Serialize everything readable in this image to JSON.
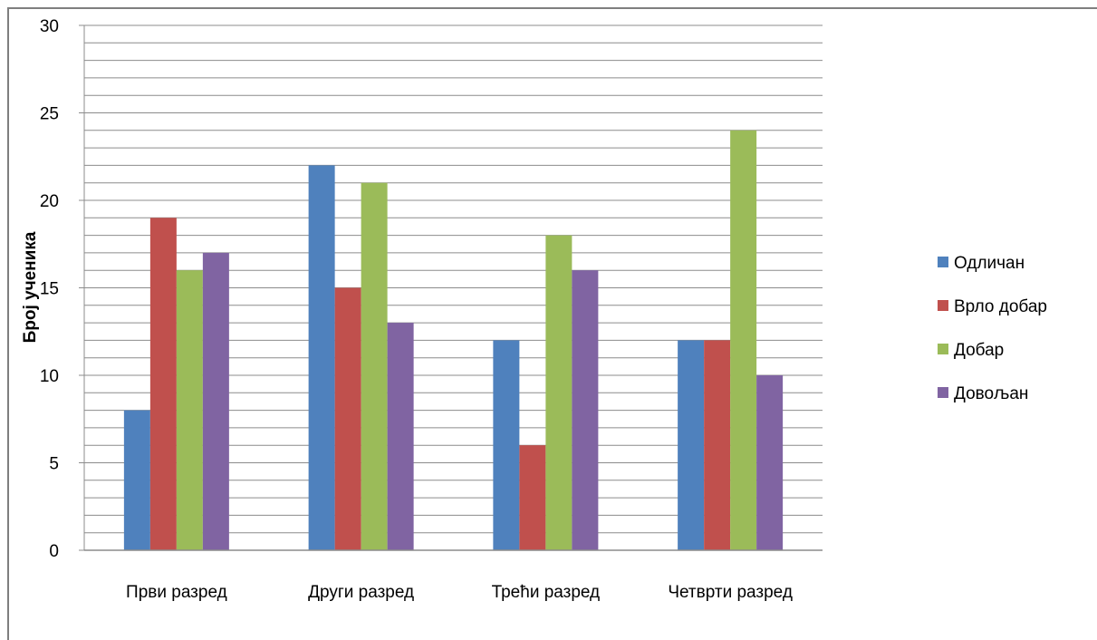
{
  "chart_data": {
    "type": "bar",
    "title": "",
    "xlabel": "",
    "ylabel": "Број ученика",
    "ylim": [
      0,
      30
    ],
    "yticks": [
      0,
      5,
      10,
      15,
      20,
      25,
      30
    ],
    "minor_grid_step": 1,
    "grid": true,
    "legend_position": "right",
    "categories": [
      "Први разред",
      "Други разред",
      "Трећи разред",
      "Четврти разред"
    ],
    "series": [
      {
        "name": "Одличан",
        "color": "#4F81BD",
        "values": [
          8,
          22,
          12,
          12
        ]
      },
      {
        "name": "Врло добар",
        "color": "#C0504D",
        "values": [
          19,
          15,
          6,
          12
        ]
      },
      {
        "name": "Добар",
        "color": "#9BBB59",
        "values": [
          16,
          21,
          18,
          24
        ]
      },
      {
        "name": "Довољан",
        "color": "#8064A2",
        "values": [
          17,
          13,
          16,
          10
        ]
      }
    ]
  }
}
